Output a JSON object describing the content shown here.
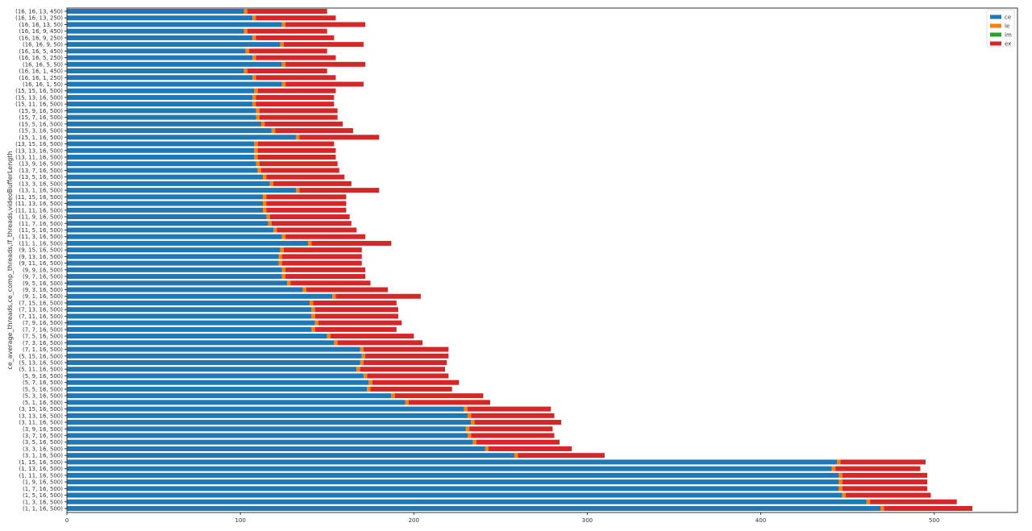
{
  "chart_data": {
    "type": "bar",
    "orientation": "horizontal",
    "stacked": true,
    "title": "",
    "xlabel": "",
    "ylabel": "ce_average_threads,ce_comp_threads,lf_threads,videoBufferLength",
    "xlim": [
      0,
      548
    ],
    "xticks": [
      0,
      100,
      200,
      300,
      400,
      500
    ],
    "grid": false,
    "legend_position": "top-right",
    "categories": [
      "(16, 16, 13, 450)",
      "(16, 16, 13, 250)",
      "(16, 16, 13, 50)",
      "(16, 16, 9, 450)",
      "(16, 16, 9, 250)",
      "(16, 16, 9, 50)",
      "(16, 16, 5, 450)",
      "(16, 16, 5, 250)",
      "(16, 16, 5, 50)",
      "(16, 16, 1, 450)",
      "(16, 16, 1, 250)",
      "(16, 16, 1, 50)",
      "(15, 15, 16, 500)",
      "(15, 13, 16, 500)",
      "(15, 11, 16, 500)",
      "(15, 9, 16, 500)",
      "(15, 7, 16, 500)",
      "(15, 5, 16, 500)",
      "(15, 3, 16, 500)",
      "(15, 1, 16, 500)",
      "(13, 15, 16, 500)",
      "(13, 13, 16, 500)",
      "(13, 11, 16, 500)",
      "(13, 9, 16, 500)",
      "(13, 7, 16, 500)",
      "(13, 5, 16, 500)",
      "(13, 3, 16, 500)",
      "(13, 1, 16, 500)",
      "(11, 15, 16, 500)",
      "(11, 13, 16, 500)",
      "(11, 11, 16, 500)",
      "(11, 9, 16, 500)",
      "(11, 7, 16, 500)",
      "(11, 5, 16, 500)",
      "(11, 3, 16, 500)",
      "(11, 1, 16, 500)",
      "(9, 15, 16, 500)",
      "(9, 13, 16, 500)",
      "(9, 11, 16, 500)",
      "(9, 9, 16, 500)",
      "(9, 7, 16, 500)",
      "(9, 5, 16, 500)",
      "(9, 3, 16, 500)",
      "(9, 1, 16, 500)",
      "(7, 15, 16, 500)",
      "(7, 13, 16, 500)",
      "(7, 11, 16, 500)",
      "(7, 9, 16, 500)",
      "(7, 7, 16, 500)",
      "(7, 5, 16, 500)",
      "(7, 3, 16, 500)",
      "(7, 1, 16, 500)",
      "(5, 15, 16, 500)",
      "(5, 13, 16, 500)",
      "(5, 11, 16, 500)",
      "(5, 9, 16, 500)",
      "(5, 7, 16, 500)",
      "(5, 5, 16, 500)",
      "(5, 3, 16, 500)",
      "(5, 1, 16, 500)",
      "(3, 15, 16, 500)",
      "(3, 13, 16, 500)",
      "(3, 11, 16, 500)",
      "(3, 9, 16, 500)",
      "(3, 7, 16, 500)",
      "(3, 5, 16, 500)",
      "(3, 3, 16, 500)",
      "(3, 1, 16, 500)",
      "(1, 15, 16, 500)",
      "(1, 13, 16, 500)",
      "(1, 11, 16, 500)",
      "(1, 9, 16, 500)",
      "(1, 7, 16, 500)",
      "(1, 5, 16, 500)",
      "(1, 3, 16, 500)",
      "(1, 1, 16, 500)"
    ],
    "series": [
      {
        "name": "ce",
        "color": "#1f77b4",
        "values": [
          102,
          107,
          124,
          102,
          107,
          123,
          103,
          107,
          124,
          102,
          107,
          124,
          108,
          107,
          107,
          109,
          109,
          112,
          118,
          132,
          108,
          108,
          108,
          109,
          110,
          113,
          117,
          132,
          113,
          113,
          113,
          115,
          116,
          119,
          124,
          139,
          123,
          122,
          122,
          124,
          124,
          127,
          136,
          153,
          140,
          141,
          141,
          143,
          141,
          150,
          154,
          169,
          170,
          169,
          167,
          171,
          174,
          173,
          187,
          195,
          229,
          231,
          233,
          230,
          231,
          234,
          241,
          258,
          444,
          441,
          445,
          445,
          445,
          447,
          461,
          469
        ]
      },
      {
        "name": "le",
        "color": "#ff7f0e",
        "values": [
          2,
          2,
          2,
          2,
          2,
          2,
          2,
          2,
          2,
          2,
          2,
          2,
          2,
          2,
          2,
          2,
          2,
          2,
          2,
          2,
          2,
          2,
          2,
          2,
          2,
          2,
          2,
          2,
          2,
          2,
          2,
          2,
          2,
          2,
          2,
          2,
          2,
          2,
          2,
          2,
          2,
          2,
          2,
          2,
          2,
          2,
          2,
          2,
          2,
          2,
          2,
          2,
          2,
          2,
          2,
          2,
          2,
          2,
          2,
          2,
          2,
          2,
          2,
          2,
          2,
          2,
          2,
          2,
          2,
          2,
          2,
          2,
          2,
          2,
          2,
          2
        ]
      },
      {
        "name": "im",
        "color": "#2ca02c",
        "values": [
          0,
          0,
          0,
          0,
          0,
          0,
          0,
          0,
          0,
          0,
          0,
          0,
          0,
          0,
          0,
          0,
          0,
          0,
          0,
          0,
          0,
          0,
          0,
          0,
          0,
          0,
          0,
          0,
          0,
          0,
          0,
          0,
          0,
          0,
          0,
          0,
          0,
          0,
          0,
          0,
          0,
          0,
          0,
          0,
          0,
          0,
          0,
          0,
          0,
          0,
          0,
          0,
          0,
          0,
          0,
          0,
          0,
          0,
          0,
          0,
          0,
          0,
          0,
          0,
          0,
          0,
          0,
          0,
          0,
          0,
          0,
          0,
          0,
          0,
          0,
          0
        ]
      },
      {
        "name": "ex",
        "color": "#d62728",
        "values": [
          46,
          46,
          46,
          46,
          45,
          46,
          45,
          46,
          46,
          46,
          46,
          45,
          45,
          45,
          45,
          45,
          45,
          45,
          45,
          46,
          44,
          45,
          45,
          45,
          45,
          45,
          45,
          46,
          46,
          46,
          46,
          46,
          46,
          46,
          46,
          46,
          45,
          46,
          46,
          46,
          46,
          46,
          47,
          49,
          48,
          48,
          48,
          48,
          47,
          48,
          49,
          49,
          48,
          48,
          49,
          47,
          50,
          47,
          51,
          47,
          48,
          48,
          50,
          48,
          48,
          48,
          48,
          50,
          49,
          49,
          49,
          49,
          49,
          49,
          50,
          51
        ]
      }
    ]
  }
}
